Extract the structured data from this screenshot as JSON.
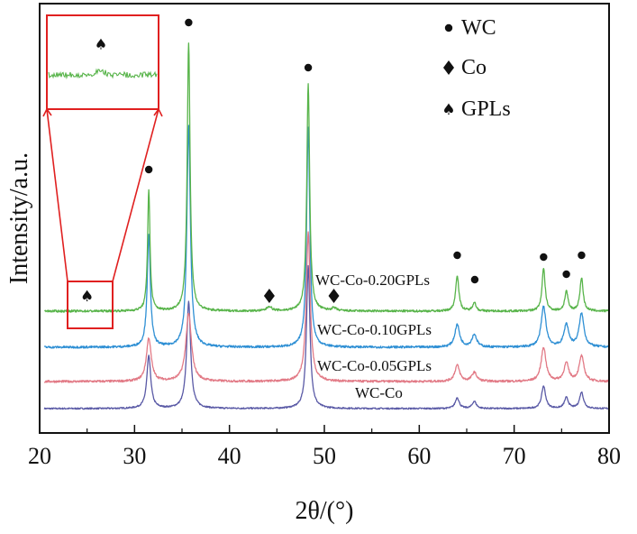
{
  "chart_data": {
    "type": "line",
    "title": "",
    "xlabel": "2θ/(°)",
    "ylabel": "Intensity/a.u.",
    "xlim": [
      20,
      80
    ],
    "xticks": [
      "20",
      "30",
      "40",
      "50",
      "60",
      "70",
      "80"
    ],
    "grid": false,
    "legend": {
      "placement": "top-right",
      "entries": [
        {
          "symbol": "circle",
          "label": "WC"
        },
        {
          "symbol": "diamond",
          "label": "Co"
        },
        {
          "symbol": "spade",
          "label": "GPLs"
        }
      ]
    },
    "series": [
      {
        "name": "WC-Co",
        "color": "#5a5aa6",
        "baseline": 0,
        "noise": 0.8,
        "peaks": [
          [
            31.5,
            58,
            0.25
          ],
          [
            35.7,
            118,
            0.25
          ],
          [
            48.3,
            158,
            0.22
          ],
          [
            64.0,
            12,
            0.25
          ],
          [
            65.8,
            8,
            0.25
          ],
          [
            73.1,
            25,
            0.25
          ],
          [
            75.5,
            12,
            0.25
          ],
          [
            77.1,
            18,
            0.25
          ]
        ]
      },
      {
        "name": "WC-Co-0.05GPLs",
        "color": "#e27a86",
        "baseline": 30,
        "noise": 1.2,
        "peaks": [
          [
            31.5,
            48,
            0.3
          ],
          [
            35.7,
            75,
            0.35
          ],
          [
            48.3,
            165,
            0.25
          ],
          [
            64.0,
            18,
            0.3
          ],
          [
            65.8,
            10,
            0.3
          ],
          [
            73.1,
            38,
            0.3
          ],
          [
            75.5,
            20,
            0.3
          ],
          [
            77.1,
            28,
            0.3
          ]
        ]
      },
      {
        "name": "WC-Co-0.10GPLs",
        "color": "#2e8fd4",
        "baseline": 68,
        "noise": 1.2,
        "peaks": [
          [
            31.5,
            124,
            0.2
          ],
          [
            35.7,
            245,
            0.22
          ],
          [
            48.3,
            245,
            0.2
          ],
          [
            64.0,
            25,
            0.3
          ],
          [
            65.8,
            14,
            0.3
          ],
          [
            73.1,
            45,
            0.3
          ],
          [
            75.5,
            25,
            0.3
          ],
          [
            77.1,
            37,
            0.3
          ]
        ]
      },
      {
        "name": "WC-Co-0.20GPLs",
        "color": "#58b44a",
        "baseline": 108,
        "noise": 1.2,
        "peaks": [
          [
            31.5,
            135,
            0.15
          ],
          [
            35.7,
            298,
            0.18
          ],
          [
            44.2,
            5,
            0.3
          ],
          [
            48.3,
            252,
            0.18
          ],
          [
            51.0,
            3,
            0.3
          ],
          [
            64.0,
            40,
            0.2
          ],
          [
            65.8,
            10,
            0.2
          ],
          [
            73.1,
            47,
            0.2
          ],
          [
            75.5,
            22,
            0.2
          ],
          [
            77.1,
            37,
            0.2
          ]
        ]
      }
    ],
    "peak_markers": [
      {
        "phase": "WC",
        "symbol": "circle",
        "x": 31.5
      },
      {
        "phase": "WC",
        "symbol": "circle",
        "x": 35.7
      },
      {
        "phase": "WC",
        "symbol": "circle",
        "x": 48.3
      },
      {
        "phase": "WC",
        "symbol": "circle",
        "x": 64.0
      },
      {
        "phase": "WC",
        "symbol": "circle",
        "x": 65.8
      },
      {
        "phase": "WC",
        "symbol": "circle",
        "x": 73.1
      },
      {
        "phase": "WC",
        "symbol": "circle",
        "x": 75.5
      },
      {
        "phase": "WC",
        "symbol": "circle",
        "x": 77.1
      },
      {
        "phase": "Co",
        "symbol": "diamond",
        "x": 44.2
      },
      {
        "phase": "Co",
        "symbol": "diamond",
        "x": 51.0
      },
      {
        "phase": "GPLs",
        "symbol": "spade",
        "x": 25.0
      }
    ],
    "inset": {
      "description": "magnified view of the GPLs peak region of WC-Co-0.20GPLs",
      "x_range": [
        22.8,
        27.5
      ],
      "color": "#58b44a",
      "frame_color": "#e02020",
      "marker_symbol": "spade"
    }
  }
}
